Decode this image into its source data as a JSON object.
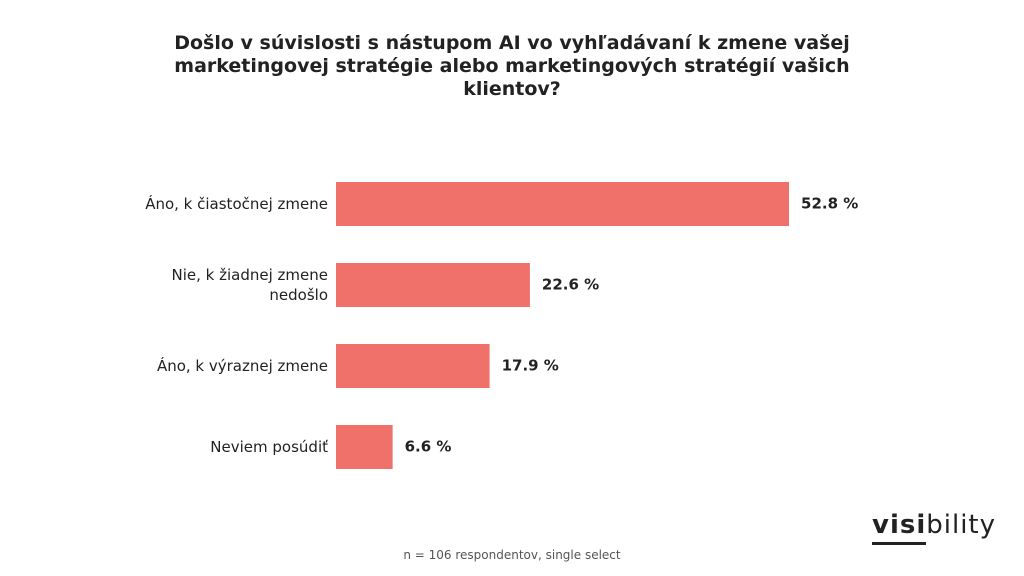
{
  "chart_data": {
    "type": "barh",
    "title": "Došlo v súvislosti s nástupom AI vo vyhľadávaní k zmene vašej marketingovej stratégie alebo marketingových stratégií vašich klientov?",
    "categories": [
      "Áno, k čiastočnej zmene",
      "Nie, k žiadnej zmene nedošlo",
      "Áno, k výraznej zmene",
      "Neviem posúdiť"
    ],
    "values": [
      52.8,
      22.6,
      17.9,
      6.6
    ],
    "value_labels": [
      "52.8 %",
      "22.6 %",
      "17.9 %",
      "6.6 %"
    ],
    "color": "#f0706a",
    "footnote": "n = 106 respondentov, single select"
  },
  "logo": {
    "bold": "visi",
    "light": "bility"
  }
}
